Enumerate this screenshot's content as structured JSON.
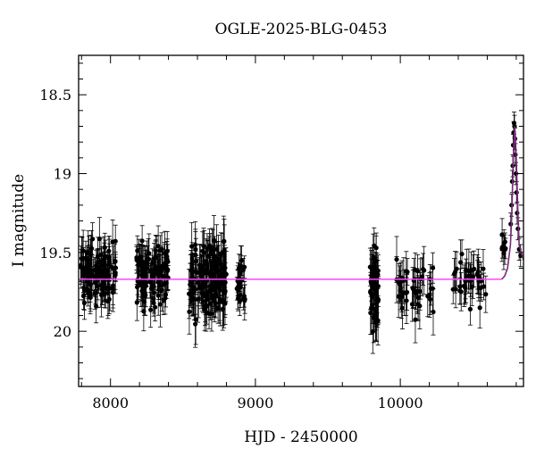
{
  "chart_data": {
    "type": "scatter",
    "title": "OGLE-2025-BLG-0453",
    "xlabel": "HJD - 2450000",
    "ylabel": "I magnitude",
    "xlim": [
      7780,
      10850
    ],
    "ylim": [
      20.35,
      18.25
    ],
    "y_inverted": true,
    "grid": false,
    "x_ticks": [
      8000,
      9000,
      10000
    ],
    "y_ticks": [
      18.5,
      19,
      19.5,
      20
    ],
    "x_tick_labels": [
      "8000",
      "9000",
      "10000"
    ],
    "y_tick_labels": [
      "18.5",
      "19",
      "19.5",
      "20"
    ],
    "colors": {
      "data": "#000000",
      "model": "#ff44ff",
      "peak_model": "#7a2a7a"
    },
    "baseline_model": {
      "name": "",
      "x": [
        7780,
        10700
      ],
      "y": [
        19.67,
        19.67
      ]
    },
    "peak_model": {
      "x": [
        10700,
        10720,
        10740,
        10760,
        10770,
        10780,
        10790,
        10800,
        10810,
        10820,
        10850
      ],
      "y": [
        19.67,
        19.65,
        19.6,
        19.45,
        19.25,
        18.9,
        18.7,
        18.9,
        19.2,
        19.45,
        19.55
      ]
    },
    "series": [
      {
        "name": "",
        "segments": [
          {
            "x_start": 7790,
            "x_end": 8040,
            "y_mean": 19.64,
            "y_spread": 0.17,
            "n": 110,
            "err": 0.11
          },
          {
            "x_start": 8180,
            "x_end": 8400,
            "y_mean": 19.64,
            "y_spread": 0.16,
            "n": 110,
            "err": 0.11
          },
          {
            "x_start": 8540,
            "x_end": 8800,
            "y_mean": 19.66,
            "y_spread": 0.2,
            "n": 150,
            "err": 0.13
          },
          {
            "x_start": 8870,
            "x_end": 8930,
            "y_mean": 19.68,
            "y_spread": 0.15,
            "n": 25,
            "err": 0.1
          },
          {
            "x_start": 9790,
            "x_end": 9850,
            "y_mean": 19.72,
            "y_spread": 0.25,
            "n": 50,
            "err": 0.13
          },
          {
            "x_start": 9970,
            "x_end": 10230,
            "y_mean": 19.72,
            "y_spread": 0.15,
            "n": 45,
            "err": 0.12
          },
          {
            "x_start": 10350,
            "x_end": 10600,
            "y_mean": 19.66,
            "y_spread": 0.13,
            "n": 40,
            "err": 0.11
          },
          {
            "x_start": 10700,
            "x_end": 10730,
            "y_mean": 19.45,
            "y_spread": 0.08,
            "n": 8,
            "err": 0.08
          }
        ],
        "peak_points": [
          [
            10762,
            19.32
          ],
          [
            10768,
            19.2
          ],
          [
            10772,
            19.05
          ],
          [
            10776,
            18.95
          ],
          [
            10779,
            18.82
          ],
          [
            10782,
            18.74
          ],
          [
            10785,
            18.68
          ],
          [
            10788,
            18.7
          ],
          [
            10791,
            18.78
          ],
          [
            10794,
            18.88
          ],
          [
            10798,
            19.0
          ],
          [
            10802,
            19.12
          ],
          [
            10806,
            19.25
          ],
          [
            10812,
            19.35
          ],
          [
            10820,
            19.48
          ],
          [
            10830,
            19.52
          ]
        ]
      }
    ]
  }
}
